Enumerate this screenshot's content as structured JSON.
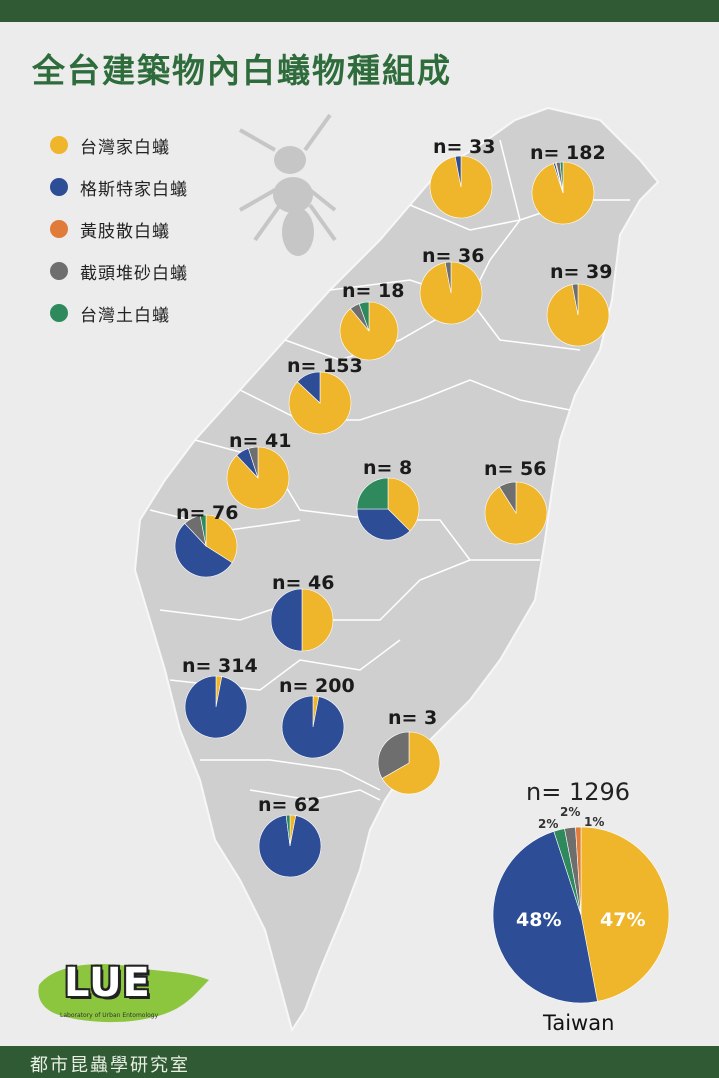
{
  "title": "全台建築物內白蟻物種組成",
  "footer": "都市昆蟲學研究室",
  "logo": {
    "text": "LUE",
    "subtitle": "Laboratory of Urban Entomology"
  },
  "colors": {
    "台灣家白蟻": "#efb52b",
    "格斯特家白蟻": "#2d4d97",
    "黃肢散白蟻": "#e07b39",
    "截頭堆砂白蟻": "#6e6e6e",
    "台灣土白蟻": "#2e8a5c"
  },
  "legend": [
    {
      "label": "台灣家白蟻",
      "color": "#efb52b"
    },
    {
      "label": "格斯特家白蟻",
      "color": "#2d4d97"
    },
    {
      "label": "黃肢散白蟻",
      "color": "#e07b39"
    },
    {
      "label": "截頭堆砂白蟻",
      "color": "#6e6e6e"
    },
    {
      "label": "台灣土白蟻",
      "color": "#2e8a5c"
    }
  ],
  "regions": [
    {
      "label": "n= 33",
      "slices": [
        0.97,
        0.03,
        0,
        0,
        0
      ]
    },
    {
      "label": "n= 182",
      "slices": [
        0.95,
        0.01,
        0.005,
        0.02,
        0.015
      ]
    },
    {
      "label": "n= 36",
      "slices": [
        0.97,
        0,
        0,
        0.03,
        0
      ]
    },
    {
      "label": "n= 39",
      "slices": [
        0.97,
        0,
        0,
        0.03,
        0
      ]
    },
    {
      "label": "n= 18",
      "slices": [
        0.89,
        0,
        0,
        0.055,
        0.055
      ]
    },
    {
      "label": "n= 153",
      "slices": [
        0.87,
        0.13,
        0,
        0,
        0
      ]
    },
    {
      "label": "n= 41",
      "slices": [
        0.88,
        0.07,
        0,
        0.05,
        0
      ]
    },
    {
      "label": "n= 8",
      "slices": [
        0.375,
        0.375,
        0,
        0,
        0.25
      ]
    },
    {
      "label": "n= 56",
      "slices": [
        0.91,
        0,
        0,
        0.09,
        0
      ]
    },
    {
      "label": "n= 76",
      "slices": [
        0.34,
        0.54,
        0,
        0.09,
        0.03
      ]
    },
    {
      "label": "n= 46",
      "slices": [
        0.5,
        0.5,
        0,
        0,
        0
      ]
    },
    {
      "label": "n= 314",
      "slices": [
        0.03,
        0.97,
        0,
        0,
        0
      ]
    },
    {
      "label": "n= 200",
      "slices": [
        0.03,
        0.97,
        0,
        0,
        0
      ]
    },
    {
      "label": "n= 3",
      "slices": [
        0.667,
        0,
        0,
        0.333,
        0
      ]
    },
    {
      "label": "n= 62",
      "slices": [
        0.03,
        0.95,
        0,
        0,
        0.02
      ]
    }
  ],
  "taiwan_total": {
    "n_label": "n= 1296",
    "name": "Taiwan",
    "slices": [
      0.47,
      0.48,
      0.01,
      0.02,
      0.02
    ],
    "pct_labels": [
      "47%",
      "48%",
      "1%",
      "2%",
      "2%"
    ]
  }
}
